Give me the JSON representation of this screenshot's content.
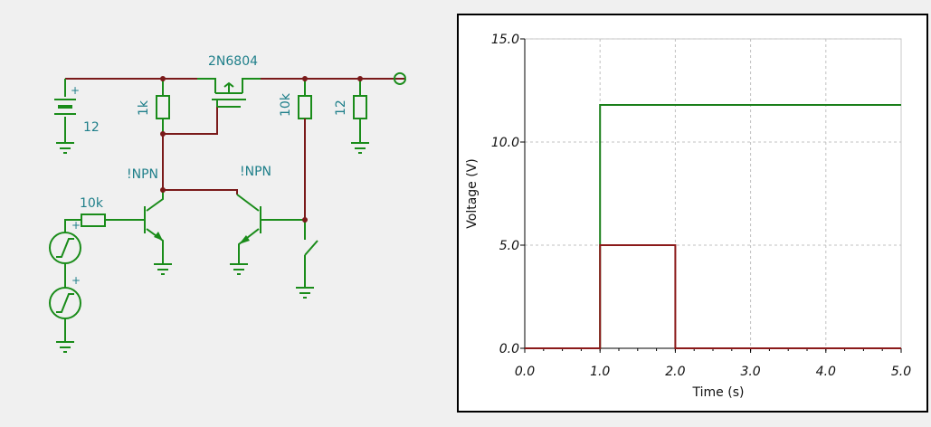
{
  "schematic": {
    "labels": {
      "battery_voltage": "12",
      "resistor_1k": "1k",
      "mosfet": "2N6804",
      "resistor_10k_v": "10k",
      "load_12": "12",
      "npn_left": "!NPN",
      "npn_right": "!NPN",
      "resistor_10k_h": "10k"
    },
    "colors": {
      "wire": "#7a1a1a",
      "component": "#1a8c1a",
      "text": "#1f7f8a"
    }
  },
  "chart_data": {
    "type": "line",
    "xlabel": "Time (s)",
    "ylabel": "Voltage (V)",
    "xlim": [
      0,
      5
    ],
    "ylim": [
      0,
      15
    ],
    "x_ticks": [
      "0.0",
      "1.0",
      "2.0",
      "3.0",
      "4.0",
      "5.0"
    ],
    "y_ticks": [
      "0.0",
      "5.0",
      "10.0",
      "15.0"
    ],
    "grid": true,
    "series": [
      {
        "color": "#1a7f1a",
        "x": [
          0,
          1,
          1,
          5
        ],
        "y": [
          0,
          0,
          11.8,
          11.8
        ]
      },
      {
        "color": "#8b1a1a",
        "x": [
          0,
          1,
          1,
          2,
          2,
          5
        ],
        "y": [
          0,
          0,
          5,
          5,
          0,
          0
        ]
      }
    ]
  }
}
